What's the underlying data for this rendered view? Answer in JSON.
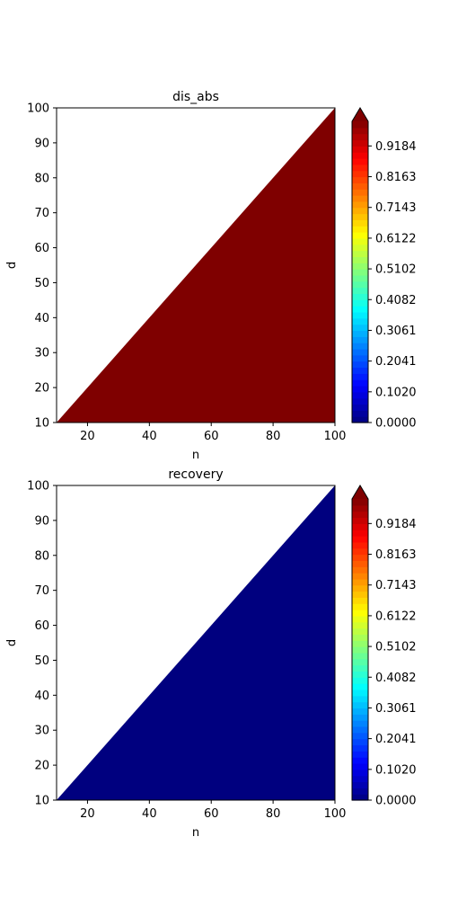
{
  "colormap": {
    "name": "jet",
    "stops": [
      "#00007f",
      "#0000ff",
      "#007fff",
      "#00ffff",
      "#7fff7f",
      "#ffff00",
      "#ff7f00",
      "#ff0000",
      "#7f0000"
    ],
    "ticks": [
      0.0,
      0.102,
      0.2041,
      0.3061,
      0.4082,
      0.5102,
      0.6122,
      0.7143,
      0.8163,
      0.9184
    ],
    "tick_labels": [
      "0.0000",
      "0.1020",
      "0.2041",
      "0.3061",
      "0.4082",
      "0.5102",
      "0.6122",
      "0.7143",
      "0.8163",
      "0.9184"
    ],
    "range": [
      0,
      1
    ],
    "levels": 49,
    "extend": "max",
    "over_color": "#7f0000"
  },
  "chart_data": [
    {
      "type": "heatmap",
      "title": "dis_abs",
      "xlabel": "n",
      "ylabel": "d",
      "xlim": [
        10,
        100
      ],
      "ylim": [
        10,
        100
      ],
      "xticks": [
        20,
        40,
        60,
        80,
        100
      ],
      "yticks": [
        10,
        20,
        30,
        40,
        50,
        60,
        70,
        80,
        90,
        100
      ],
      "region": "d <= n",
      "value": 1.0,
      "fill_color": "#7f0000"
    },
    {
      "type": "heatmap",
      "title": "recovery",
      "xlabel": "n",
      "ylabel": "d",
      "xlim": [
        10,
        100
      ],
      "ylim": [
        10,
        100
      ],
      "xticks": [
        20,
        40,
        60,
        80,
        100
      ],
      "yticks": [
        10,
        20,
        30,
        40,
        50,
        60,
        70,
        80,
        90,
        100
      ],
      "region": "d <= n",
      "value": 0.0,
      "fill_color": "#00007f"
    }
  ]
}
